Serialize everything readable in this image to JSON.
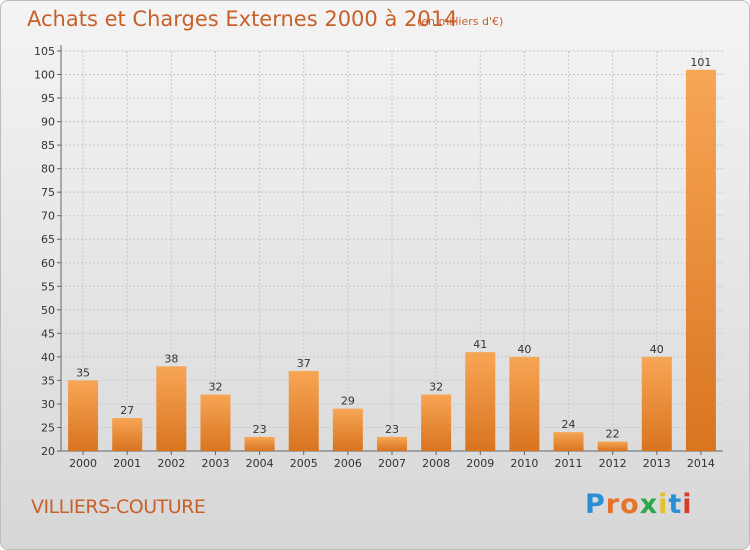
{
  "header": {
    "title": "Achats et Charges Externes 2000 à 2014",
    "subtitle": "(en milliers d'€)"
  },
  "footer": {
    "commune": "VILLIERS-COUTURE",
    "logo_letters": [
      "P",
      "r",
      "o",
      "x",
      "i",
      "t",
      "i"
    ],
    "logo_colors": [
      "#2a8fd6",
      "#e5732a",
      "#e5732a",
      "#2aa84a",
      "#e5c12a",
      "#2a8fd6",
      "#d63a2a"
    ]
  },
  "chart_data": {
    "type": "bar",
    "title": "Achats et Charges Externes 2000 à 2014",
    "subtitle": "(en milliers d'€)",
    "categories": [
      "2000",
      "2001",
      "2002",
      "2003",
      "2004",
      "2005",
      "2006",
      "2007",
      "2008",
      "2009",
      "2010",
      "2011",
      "2012",
      "2013",
      "2014"
    ],
    "values": [
      35,
      27,
      38,
      32,
      23,
      37,
      29,
      23,
      32,
      41,
      40,
      24,
      22,
      40,
      101
    ],
    "ylim": [
      20,
      105
    ],
    "yticks": [
      20,
      25,
      30,
      35,
      40,
      45,
      50,
      55,
      60,
      65,
      70,
      75,
      80,
      85,
      90,
      95,
      100,
      105
    ],
    "xlabel": "",
    "ylabel": "",
    "grid": true,
    "bar_color_top": "#f7a655",
    "bar_color_bottom": "#d9741f"
  }
}
